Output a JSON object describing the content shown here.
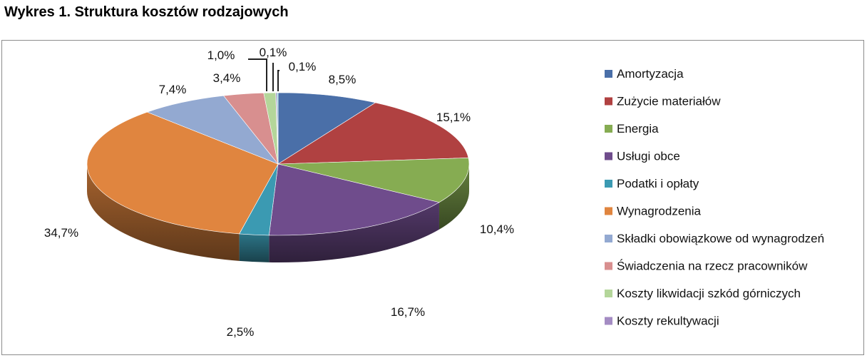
{
  "title": "Wykres 1. Struktura kosztów rodzajowych",
  "chart_data": {
    "type": "pie",
    "title": "Wykres 1. Struktura kosztów rodzajowych",
    "legend_position": "right",
    "slices": [
      {
        "name": "Amortyzacja",
        "value": 8.5,
        "label": "8,5%",
        "color": "#4a6fa8"
      },
      {
        "name": "Zużycie materiałów",
        "value": 15.1,
        "label": "15,1%",
        "color": "#b04141"
      },
      {
        "name": "Energia",
        "value": 10.4,
        "label": "10,4%",
        "color": "#86ac52"
      },
      {
        "name": "Usługi obce",
        "value": 16.7,
        "label": "16,7%",
        "color": "#6f4c8c"
      },
      {
        "name": "Podatki i opłaty",
        "value": 2.5,
        "label": "2,5%",
        "color": "#3b9ab2"
      },
      {
        "name": "Wynagrodzenia",
        "value": 34.7,
        "label": "34,7%",
        "color": "#e0853f"
      },
      {
        "name": "Składki obowiązkowe od wynagrodzeń",
        "value": 7.4,
        "label": "7,4%",
        "color": "#93a9d1"
      },
      {
        "name": "Świadczenia na rzecz pracowników",
        "value": 3.4,
        "label": "3,4%",
        "color": "#d88f8f"
      },
      {
        "name": "Koszty likwidacji szkód górniczych",
        "value": 1.0,
        "label": "1,0%",
        "color": "#b4d69a"
      },
      {
        "name": "Koszty rekultywacji",
        "value": 0.1,
        "label": "0,1%",
        "color": "#a48cc3"
      },
      {
        "name": "",
        "value": 0.1,
        "label": "0,1%",
        "color": "#7ac1d3"
      }
    ]
  }
}
